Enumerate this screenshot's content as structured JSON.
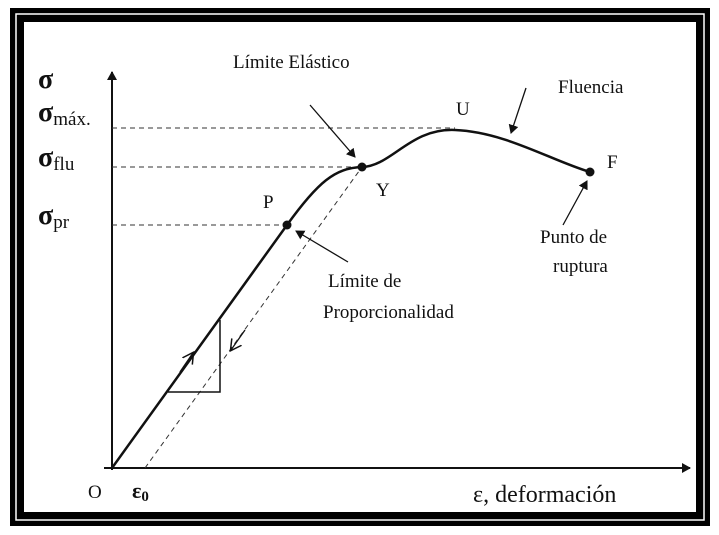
{
  "axes": {
    "y_symbol": "σ",
    "x_label": "ε, deformación",
    "origin": "O"
  },
  "y_levels": [
    {
      "symbol": "σ",
      "subscript": "máx."
    },
    {
      "symbol": "σ",
      "subscript": "flu"
    },
    {
      "symbol": "σ",
      "subscript": "pr"
    }
  ],
  "epsilon0": {
    "symbol": "ε",
    "subscript": "0"
  },
  "points": [
    {
      "label": "P"
    },
    {
      "label": "Y"
    },
    {
      "label": "U"
    },
    {
      "label": "F"
    }
  ],
  "annotations": {
    "elastic_limit": "Límite Elástico",
    "yield": "Fluencia",
    "rupture": [
      "Punto de",
      "ruptura"
    ],
    "proportionality": [
      "Límite de",
      "Proporcionalidad"
    ]
  }
}
